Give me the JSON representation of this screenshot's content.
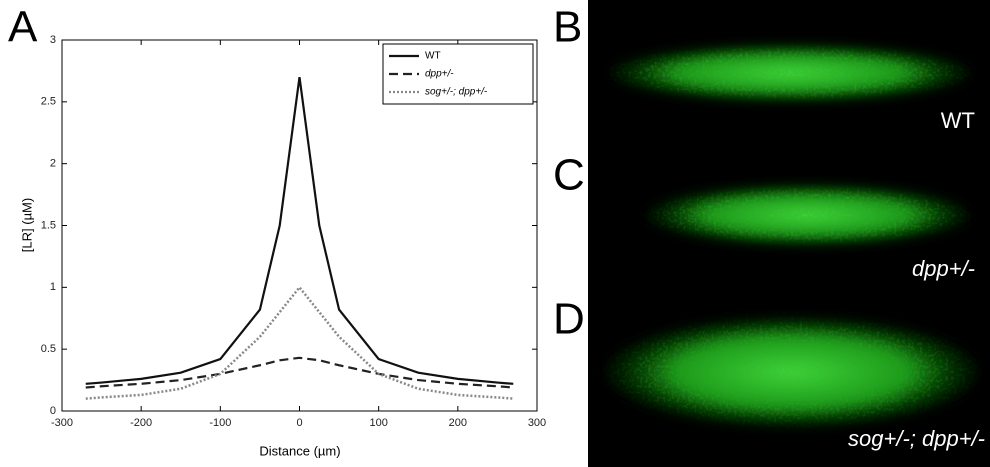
{
  "chart_data": {
    "type": "line",
    "panel_label": "A",
    "x_label": "Distance (µm)",
    "y_label": "[LR] (µM)",
    "x": [
      -270,
      -250,
      -200,
      -150,
      -100,
      -50,
      -25,
      0,
      25,
      50,
      100,
      150,
      200,
      250,
      270
    ],
    "series": [
      {
        "name": "WT",
        "color": "#111111",
        "dash": "solid",
        "values": [
          0.22,
          0.23,
          0.26,
          0.31,
          0.42,
          0.82,
          1.5,
          2.7,
          1.5,
          0.82,
          0.42,
          0.31,
          0.26,
          0.23,
          0.22
        ]
      },
      {
        "name": "dpp+/-",
        "color": "#222222",
        "dash": "dashed",
        "values": [
          0.19,
          0.2,
          0.22,
          0.25,
          0.3,
          0.37,
          0.41,
          0.43,
          0.41,
          0.37,
          0.3,
          0.25,
          0.22,
          0.2,
          0.19
        ]
      },
      {
        "name": "sog+/-; dpp+/-",
        "color": "#888888",
        "dash": "dotted",
        "values": [
          0.1,
          0.11,
          0.13,
          0.18,
          0.3,
          0.6,
          0.8,
          1.0,
          0.8,
          0.6,
          0.3,
          0.18,
          0.13,
          0.11,
          0.1
        ]
      }
    ],
    "xlim": [
      -300,
      300
    ],
    "xticks": [
      -300,
      -200,
      -100,
      0,
      100,
      200,
      300
    ],
    "ylim": [
      0,
      3
    ],
    "yticks": [
      0,
      0.5,
      1,
      1.5,
      2,
      2.5,
      3
    ],
    "legend": "upper right"
  },
  "panels": [
    {
      "label": "B",
      "caption": "WT"
    },
    {
      "label": "C",
      "caption": "dpp+/-"
    },
    {
      "label": "D",
      "caption": "sog+/-; dpp+/-"
    }
  ]
}
